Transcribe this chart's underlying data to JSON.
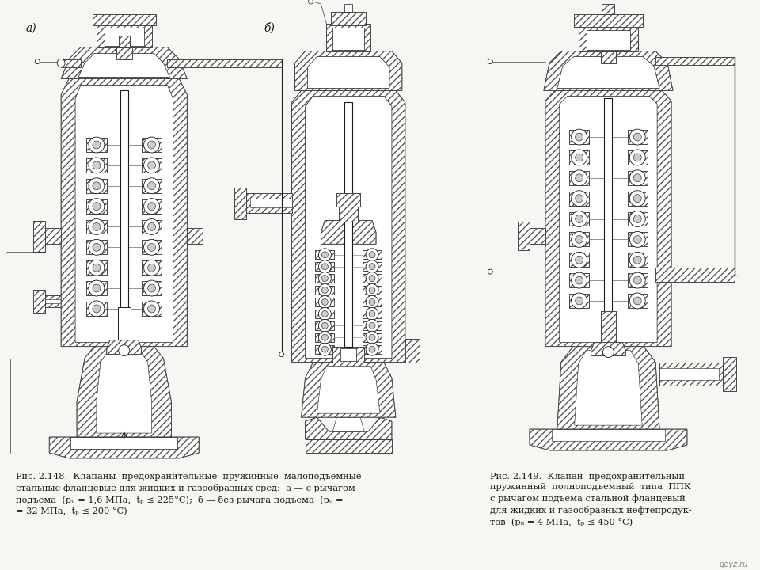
{
  "background_color": "#f0ede8",
  "caption_left": "Рис. 2.148.  Клапаны  предохранительные  пружинные  малоподъемные\nстальные фланцевые для жидких и газообразных сред:  а — с рычагом\nподъема  (рᵤ = 1,6 МПа,  tₚ ≤ 225°С);  б — без рычага подъема  (рᵤ =\n= 32 МПа,  tₚ ≤ 200 °C)",
  "caption_right": "Рис. 2.149.  Клапан  предохранительный\nпружинный  полноподъемный  типа  ППК\nс рычагом подъема стальной фланцевый\nдля жидких и газообразных нефтепродук-\nтов  (рᵤ = 4 МПа,  tₚ ≤ 450 °C)",
  "watermark": "geyz.ru",
  "fig_width": 9.6,
  "fig_height": 7.2,
  "lc": "#1a1a1a",
  "bg": "#f8f6f2"
}
